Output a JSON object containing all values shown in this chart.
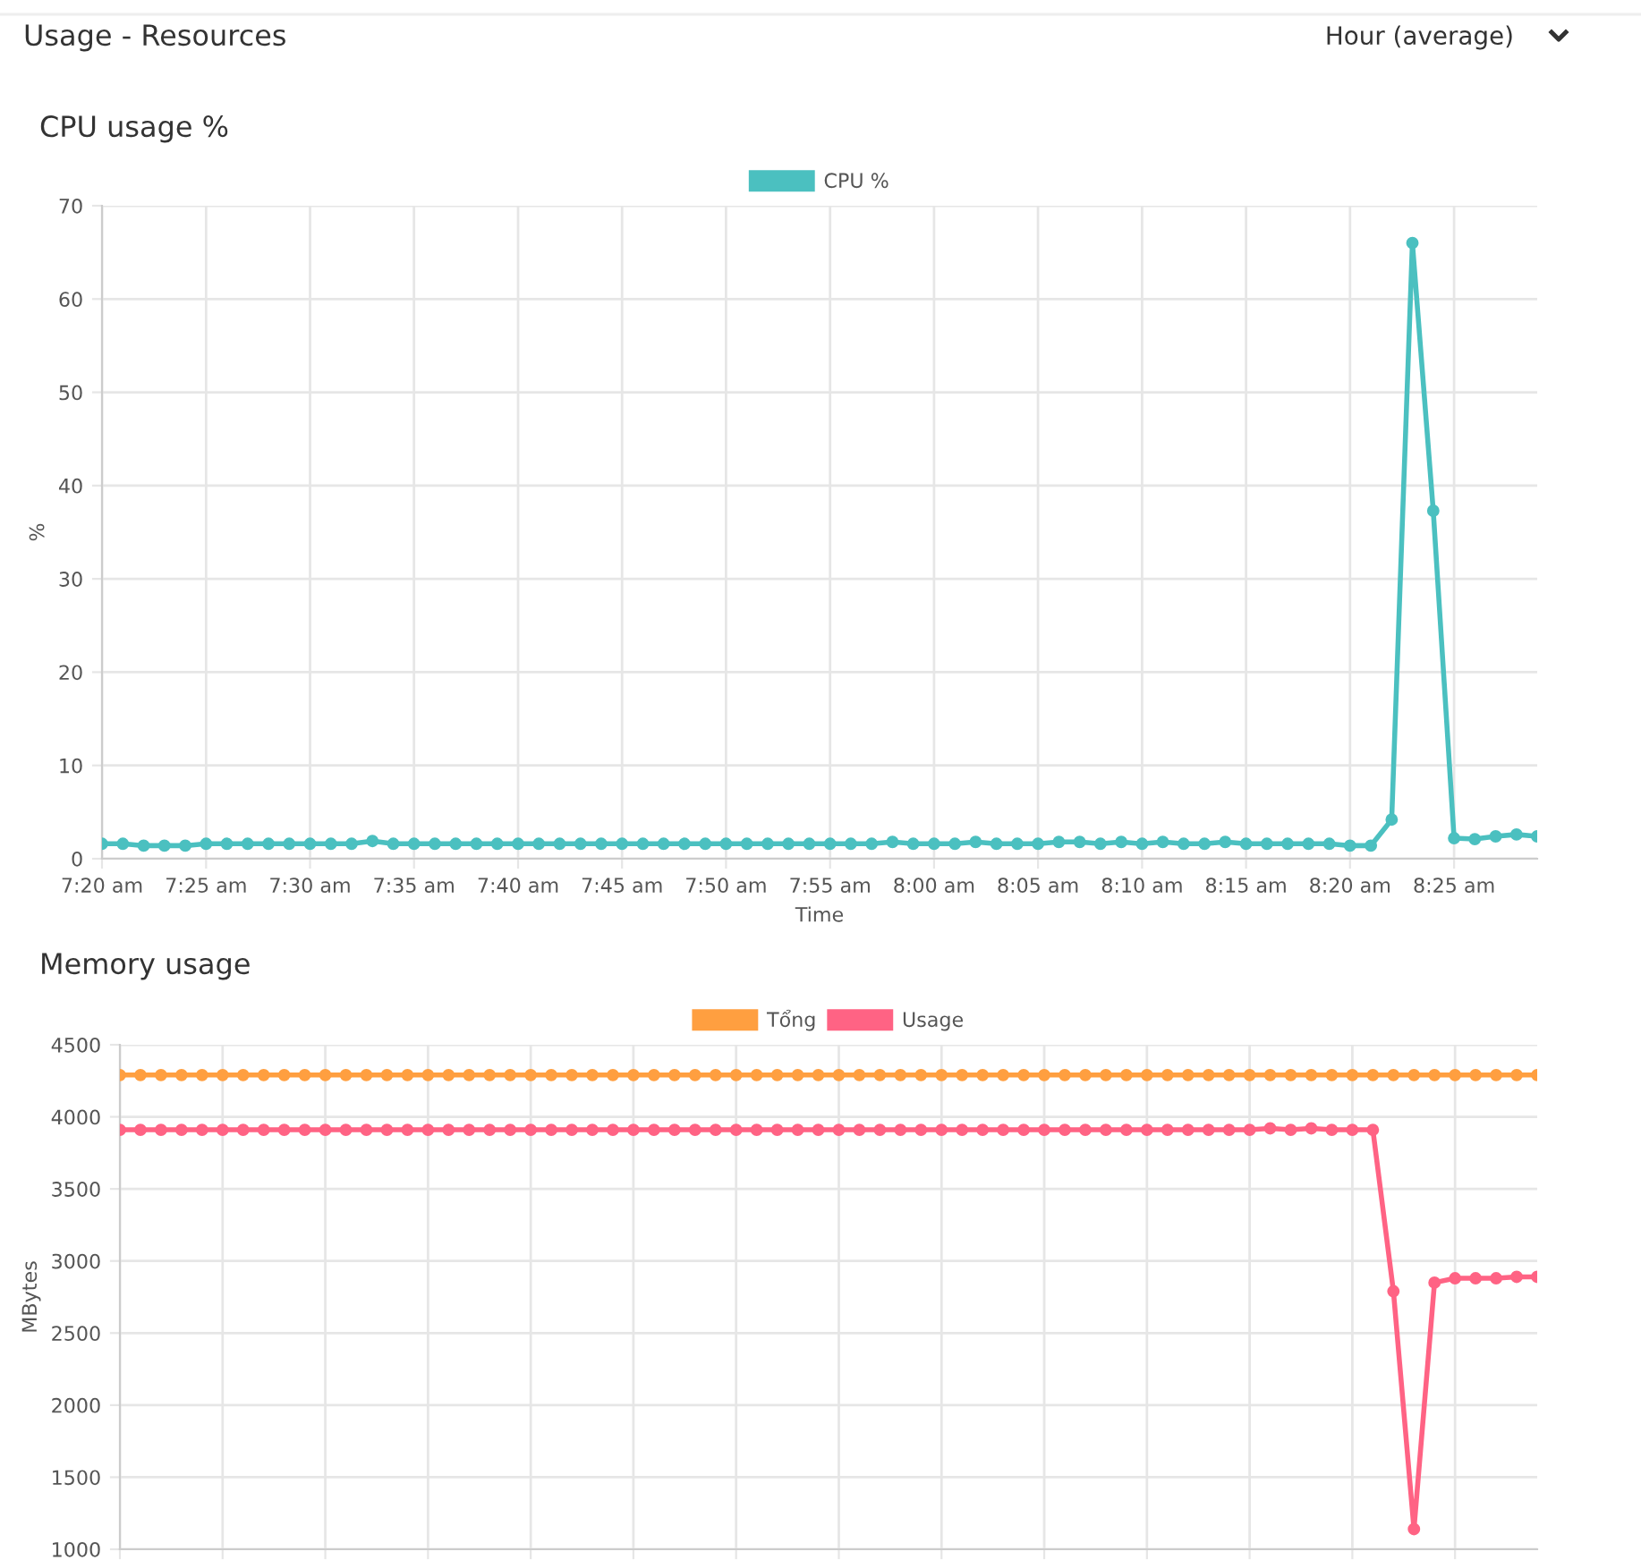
{
  "chart_data": [
    {
      "type": "line",
      "title": "CPU usage %",
      "xlabel": "Time",
      "ylabel": "%",
      "annotations": [
        "Usage - Resources",
        "Hour (average)"
      ],
      "x": [
        7.3333,
        7.35,
        7.3667,
        7.3833,
        7.4,
        7.4167,
        7.4333,
        7.45,
        7.4667,
        7.4833,
        7.5,
        7.5167,
        7.5333,
        7.55,
        7.5667,
        7.5833,
        7.6,
        7.6167,
        7.6333,
        7.65,
        7.6667,
        7.6833,
        7.7,
        7.7167,
        7.7333,
        7.75,
        7.7667,
        7.7833,
        7.8,
        7.8167,
        7.8333,
        7.85,
        7.8667,
        7.8833,
        7.9,
        7.9167,
        7.9333,
        7.95,
        7.9667,
        7.9833,
        8.0,
        8.0167,
        8.0333,
        8.05,
        8.0667,
        8.0833,
        8.1,
        8.1167,
        8.1333,
        8.15,
        8.1667,
        8.1833,
        8.2,
        8.2167,
        8.2333,
        8.25,
        8.2667,
        8.2833,
        8.3,
        8.3167,
        8.3333,
        8.35,
        8.3667,
        8.3833,
        8.4,
        8.4167,
        8.4333,
        8.45,
        8.4667,
        8.4833
      ],
      "series": [
        {
          "name": "CPU %",
          "color": "#4bc0c0",
          "values": [
            1.6,
            1.6,
            1.4,
            1.4,
            1.4,
            1.6,
            1.6,
            1.6,
            1.6,
            1.6,
            1.6,
            1.6,
            1.6,
            1.9,
            1.6,
            1.6,
            1.6,
            1.6,
            1.6,
            1.6,
            1.6,
            1.6,
            1.6,
            1.6,
            1.6,
            1.6,
            1.6,
            1.6,
            1.6,
            1.6,
            1.6,
            1.6,
            1.6,
            1.6,
            1.6,
            1.6,
            1.6,
            1.6,
            1.8,
            1.6,
            1.6,
            1.6,
            1.8,
            1.6,
            1.6,
            1.6,
            1.8,
            1.8,
            1.6,
            1.8,
            1.6,
            1.8,
            1.6,
            1.6,
            1.8,
            1.6,
            1.6,
            1.6,
            1.6,
            1.6,
            1.4,
            1.4,
            4.2,
            66,
            37.3,
            2.2,
            2.1,
            2.4,
            2.6,
            2.4
          ]
        }
      ],
      "xlim": [
        7.3333,
        8.4833
      ],
      "xticks": [
        {
          "value": 7.3333,
          "label": "7:20 am"
        },
        {
          "value": 7.4167,
          "label": "7:25 am"
        },
        {
          "value": 7.5,
          "label": "7:30 am"
        },
        {
          "value": 7.5833,
          "label": "7:35 am"
        },
        {
          "value": 7.6667,
          "label": "7:40 am"
        },
        {
          "value": 7.75,
          "label": "7:45 am"
        },
        {
          "value": 7.8333,
          "label": "7:50 am"
        },
        {
          "value": 7.9167,
          "label": "7:55 am"
        },
        {
          "value": 8.0,
          "label": "8:00 am"
        },
        {
          "value": 8.0833,
          "label": "8:05 am"
        },
        {
          "value": 8.1667,
          "label": "8:10 am"
        },
        {
          "value": 8.25,
          "label": "8:15 am"
        },
        {
          "value": 8.3333,
          "label": "8:20 am"
        },
        {
          "value": 8.4167,
          "label": "8:25 am"
        }
      ],
      "ylim": [
        0,
        70
      ],
      "yticks": [
        0,
        10,
        20,
        30,
        40,
        50,
        60,
        70
      ],
      "grid": true,
      "legend": "top",
      "marker": "circle",
      "line_style": "solid"
    },
    {
      "type": "line",
      "title": "Memory usage",
      "ylabel": "MBytes",
      "categories": [
        null,
        null,
        null,
        null,
        null,
        null,
        null,
        null,
        null,
        null,
        null,
        null,
        null,
        null,
        null,
        null,
        null,
        null,
        null,
        null,
        null,
        null,
        null,
        null,
        null,
        null,
        null,
        null,
        null,
        null,
        null,
        null,
        null,
        null,
        null,
        null,
        null,
        null,
        null,
        null,
        null,
        null,
        null,
        null,
        null,
        null,
        null,
        null,
        null,
        null,
        null,
        null,
        null,
        null,
        null,
        null,
        null,
        null,
        null,
        null,
        null,
        null,
        null,
        null,
        null,
        null,
        null,
        null,
        null,
        null
      ],
      "series": [
        {
          "name": "Tổng",
          "color": "#ff9f40",
          "values": [
            4290,
            4290,
            4290,
            4290,
            4290,
            4290,
            4290,
            4290,
            4290,
            4290,
            4290,
            4290,
            4290,
            4290,
            4290,
            4290,
            4290,
            4290,
            4290,
            4290,
            4290,
            4290,
            4290,
            4290,
            4290,
            4290,
            4290,
            4290,
            4290,
            4290,
            4290,
            4290,
            4290,
            4290,
            4290,
            4290,
            4290,
            4290,
            4290,
            4290,
            4290,
            4290,
            4290,
            4290,
            4290,
            4290,
            4290,
            4290,
            4290,
            4290,
            4290,
            4290,
            4290,
            4290,
            4290,
            4290,
            4290,
            4290,
            4290,
            4290,
            4290,
            4290,
            4290,
            4290,
            4290,
            4290,
            4290,
            4290,
            4290,
            4290
          ]
        },
        {
          "name": "Usage",
          "color": "#ff6384",
          "values": [
            3910,
            3910,
            3910,
            3910,
            3910,
            3910,
            3910,
            3910,
            3910,
            3910,
            3910,
            3910,
            3910,
            3910,
            3910,
            3910,
            3910,
            3910,
            3910,
            3910,
            3910,
            3910,
            3910,
            3910,
            3910,
            3910,
            3910,
            3910,
            3910,
            3910,
            3910,
            3910,
            3910,
            3910,
            3910,
            3910,
            3910,
            3910,
            3910,
            3910,
            3910,
            3910,
            3910,
            3910,
            3910,
            3910,
            3910,
            3910,
            3910,
            3910,
            3910,
            3910,
            3910,
            3910,
            3910,
            3910,
            3920,
            3910,
            3920,
            3910,
            3910,
            3910,
            2790,
            1140,
            2850,
            2880,
            2880,
            2880,
            2890,
            2890
          ]
        }
      ],
      "ylim": [
        1000,
        4500
      ],
      "yticks": [
        1000,
        1500,
        2000,
        2500,
        3000,
        3500,
        4000,
        4500
      ],
      "tick_labels": "y",
      "grid": true,
      "legend": "top",
      "marker": "circle",
      "line_style": "solid"
    }
  ]
}
